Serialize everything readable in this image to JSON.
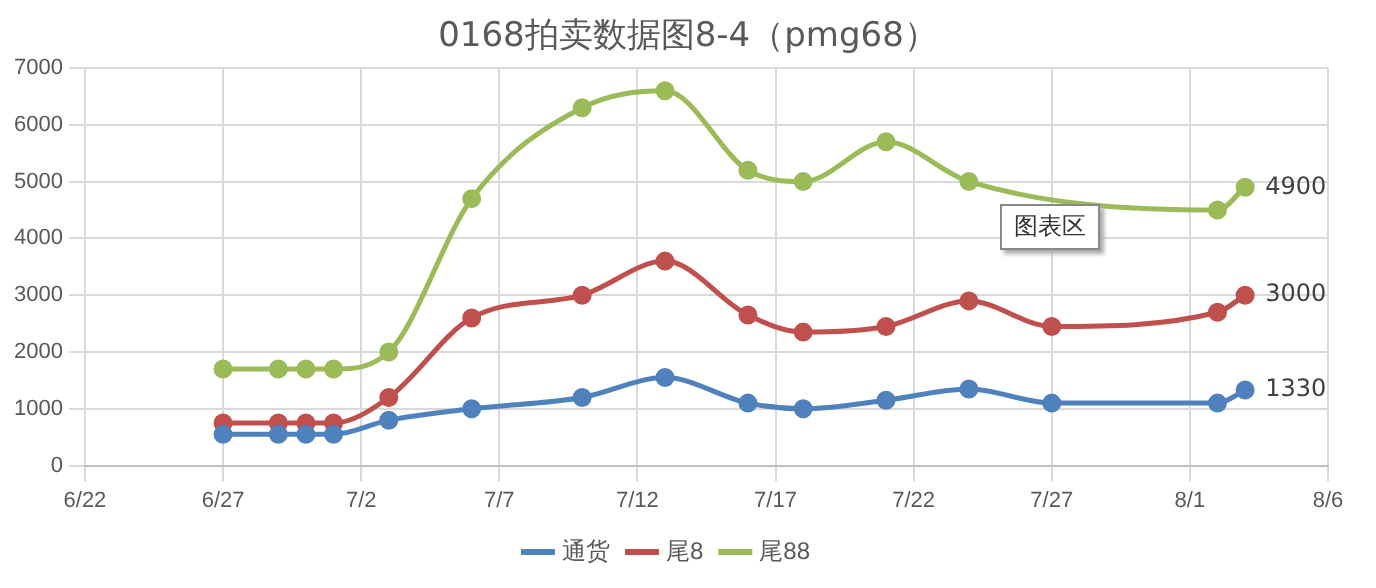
{
  "chart_data": {
    "type": "line",
    "title": "0168拍卖数据图8-4（pmg68）",
    "x": [
      "--06-27",
      "--06-29",
      "--06-30",
      "--07-01",
      "--07-03",
      "--07-06",
      "--07-10",
      "--07-13",
      "--07-16",
      "--07-18",
      "--07-21",
      "--07-24",
      "--07-27",
      "--08-02",
      "--08-03"
    ],
    "series": [
      {
        "name": "通货",
        "color": "#4f81bd",
        "values": [
          550,
          550,
          550,
          550,
          800,
          1000,
          1200,
          1550,
          1100,
          1000,
          1150,
          1350,
          1100,
          1100,
          1330
        ],
        "value_labels": [
          null,
          null,
          null,
          null,
          null,
          null,
          null,
          null,
          null,
          null,
          null,
          null,
          null,
          null,
          "1330"
        ]
      },
      {
        "name": "尾8",
        "color": "#c0504d",
        "values": [
          750,
          750,
          750,
          750,
          1200,
          2600,
          3000,
          3600,
          2650,
          2350,
          2450,
          2900,
          2450,
          2700,
          3000
        ],
        "value_labels": [
          null,
          null,
          null,
          null,
          null,
          null,
          null,
          null,
          null,
          null,
          null,
          null,
          null,
          null,
          "3000"
        ]
      },
      {
        "name": "尾88",
        "color": "#9bbb59",
        "values": [
          1700,
          1700,
          1700,
          1700,
          2000,
          4700,
          6300,
          6600,
          5200,
          5000,
          5700,
          5000,
          null,
          4500,
          4900
        ],
        "value_labels": [
          null,
          null,
          null,
          null,
          null,
          null,
          null,
          null,
          null,
          null,
          null,
          null,
          null,
          null,
          "4900"
        ]
      }
    ],
    "xlim": [
      "--06-22",
      "--08-06"
    ],
    "xticks": [
      {
        "value": "--06-22",
        "label": "6/22"
      },
      {
        "value": "--06-27",
        "label": "6/27"
      },
      {
        "value": "--07-02",
        "label": "7/2"
      },
      {
        "value": "--07-07",
        "label": "7/7"
      },
      {
        "value": "--07-12",
        "label": "7/12"
      },
      {
        "value": "--07-17",
        "label": "7/17"
      },
      {
        "value": "--07-22",
        "label": "7/22"
      },
      {
        "value": "--07-27",
        "label": "7/27"
      },
      {
        "value": "--08-01",
        "label": "8/1"
      },
      {
        "value": "--08-06",
        "label": "8/6"
      }
    ],
    "ylim": [
      0,
      7000
    ],
    "yticks": [
      0,
      1000,
      2000,
      3000,
      4000,
      5000,
      6000,
      7000
    ],
    "annotations": [
      "图表区"
    ],
    "grid": true,
    "legend": "bottom",
    "marker": "circle",
    "line_style": "solid"
  }
}
